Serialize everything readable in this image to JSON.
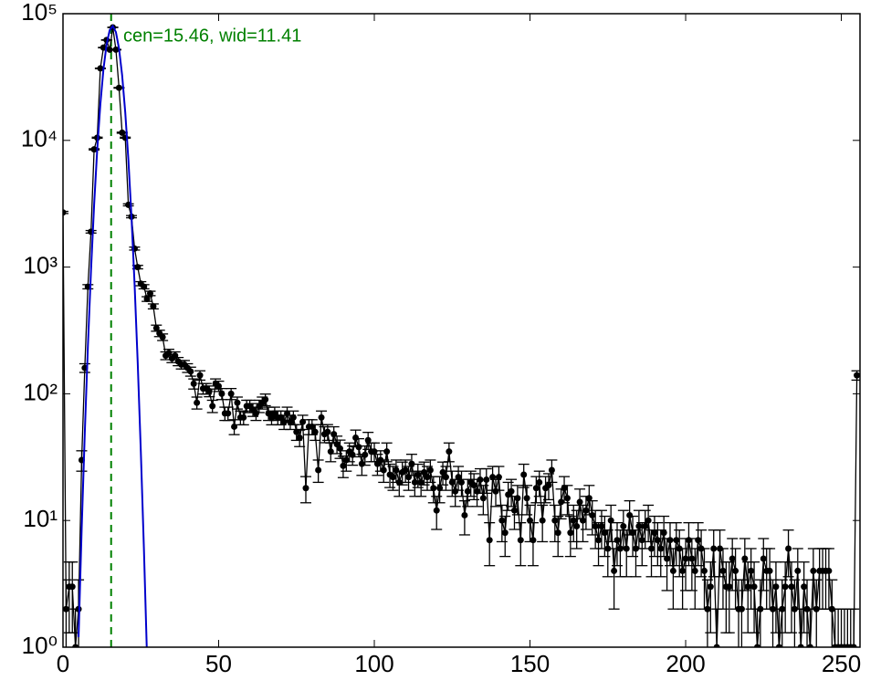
{
  "chart_data": {
    "type": "errorbar",
    "annotation": "cen=15.46, wid=11.41",
    "center_line": 15.46,
    "center_line_color": "#008000",
    "xlim": [
      0,
      256
    ],
    "xticks": [
      0,
      50,
      100,
      150,
      200,
      250
    ],
    "ylim": [
      1,
      100000
    ],
    "log_y": true,
    "yticks": [
      {
        "value": 1,
        "label": "10⁰"
      },
      {
        "value": 10,
        "label": "10¹"
      },
      {
        "value": 100,
        "label": "10²"
      },
      {
        "value": 1000,
        "label": "10³"
      },
      {
        "value": 10000,
        "label": "10⁴"
      },
      {
        "value": 100000,
        "label": "10⁵"
      }
    ],
    "series": [
      {
        "color": "#000000",
        "x": [
          0,
          1,
          2,
          3,
          4,
          5,
          6,
          7,
          8,
          9,
          10,
          11,
          12,
          13,
          14,
          15,
          16,
          17,
          18,
          19,
          20,
          21,
          22,
          23,
          24,
          25,
          26,
          27,
          28,
          29,
          30,
          31,
          32,
          33,
          34,
          35,
          36,
          37,
          38,
          39,
          40,
          41,
          42,
          43,
          44,
          45,
          46,
          47,
          48,
          49,
          50,
          51,
          52,
          53,
          54,
          55,
          56,
          57,
          58,
          59,
          60,
          61,
          62,
          63,
          64,
          65,
          66,
          67,
          68,
          69,
          70,
          71,
          72,
          73,
          74,
          75,
          76,
          77,
          78,
          79,
          80,
          81,
          82,
          83,
          84,
          85,
          86,
          87,
          88,
          89,
          90,
          91,
          92,
          93,
          94,
          95,
          96,
          97,
          98,
          99,
          100,
          101,
          102,
          103,
          104,
          105,
          106,
          107,
          108,
          109,
          110,
          111,
          112,
          113,
          114,
          115,
          116,
          117,
          118,
          119,
          120,
          121,
          122,
          123,
          124,
          125,
          126,
          127,
          128,
          129,
          130,
          131,
          132,
          133,
          134,
          135,
          136,
          137,
          138,
          139,
          140,
          141,
          142,
          143,
          144,
          145,
          146,
          147,
          148,
          149,
          150,
          151,
          152,
          153,
          154,
          155,
          156,
          157,
          158,
          159,
          160,
          161,
          162,
          163,
          164,
          165,
          166,
          167,
          168,
          169,
          170,
          171,
          172,
          173,
          174,
          175,
          176,
          177,
          178,
          179,
          180,
          181,
          182,
          183,
          184,
          185,
          186,
          187,
          188,
          189,
          190,
          191,
          192,
          193,
          194,
          195,
          196,
          197,
          198,
          199,
          200,
          201,
          202,
          203,
          204,
          205,
          206,
          207,
          208,
          209,
          210,
          211,
          212,
          213,
          214,
          215,
          216,
          217,
          218,
          219,
          220,
          221,
          222,
          223,
          224,
          225,
          226,
          227,
          228,
          229,
          230,
          231,
          232,
          233,
          234,
          235,
          236,
          237,
          238,
          239,
          240,
          241,
          242,
          243,
          244,
          245,
          246,
          247,
          248,
          249,
          250,
          251,
          252,
          253,
          254,
          255
        ],
        "values": [
          2700,
          2,
          3,
          3,
          1,
          2,
          30,
          160,
          700,
          1900,
          8500,
          10500,
          37000,
          54000,
          62000,
          52000,
          78000,
          52000,
          26000,
          11500,
          10500,
          3100,
          2500,
          1400,
          1000,
          740,
          700,
          560,
          620,
          490,
          330,
          300,
          280,
          200,
          210,
          190,
          200,
          180,
          170,
          170,
          160,
          150,
          120,
          85,
          140,
          110,
          110,
          105,
          80,
          120,
          115,
          100,
          70,
          70,
          100,
          55,
          85,
          65,
          65,
          80,
          80,
          75,
          70,
          80,
          85,
          90,
          70,
          65,
          70,
          65,
          65,
          60,
          70,
          60,
          65,
          50,
          45,
          60,
          18,
          55,
          55,
          50,
          25,
          65,
          48,
          50,
          35,
          48,
          40,
          37,
          27,
          30,
          35,
          33,
          45,
          38,
          28,
          33,
          43,
          35,
          35,
          28,
          30,
          25,
          35,
          23,
          22,
          25,
          20,
          24,
          25,
          22,
          28,
          20,
          23,
          20,
          24,
          22,
          25,
          18,
          12,
          18,
          24,
          22,
          35,
          20,
          17,
          22,
          20,
          11,
          17,
          20,
          19,
          17,
          21,
          15,
          21,
          7,
          22,
          17,
          22,
          10,
          8,
          16,
          17,
          12,
          15,
          7,
          23,
          15,
          10,
          7,
          18,
          20,
          10,
          18,
          19,
          25,
          10,
          8,
          14,
          18,
          15,
          8,
          10,
          9,
          14,
          10,
          12,
          15,
          11,
          9,
          7,
          9,
          8,
          6,
          10,
          4,
          7,
          6,
          9,
          6,
          11,
          8,
          6,
          9,
          7,
          9,
          10,
          6,
          8,
          7,
          6,
          8,
          5,
          7,
          4,
          7,
          6,
          4,
          5,
          7,
          5,
          4,
          7,
          6,
          4,
          2,
          3,
          6,
          1,
          6,
          4,
          3,
          3,
          5,
          4,
          2,
          2,
          5,
          3,
          4,
          3,
          1,
          2,
          5,
          4,
          4,
          2,
          3,
          1,
          2,
          3,
          6,
          3,
          2,
          4,
          1,
          3,
          2,
          1,
          4,
          2,
          4,
          4,
          4,
          4,
          2,
          1,
          1,
          1,
          1,
          1,
          1,
          1,
          140
        ],
        "errors": [
          52,
          1.4,
          1.7,
          1.7,
          1,
          1.4,
          5.5,
          12.6,
          26.5,
          43.6,
          92,
          102,
          192,
          232,
          249,
          228,
          279,
          228,
          161,
          107,
          102,
          55.7,
          50,
          37.4,
          31.6,
          27.2,
          26.5,
          23.7,
          24.9,
          22.1,
          18.2,
          17.3,
          16.7,
          14.1,
          14.5,
          13.8,
          14.1,
          13.4,
          13,
          13,
          12.6,
          12.2,
          11,
          9.2,
          11.8,
          10.5,
          10.5,
          10.2,
          8.9,
          11,
          10.7,
          10,
          8.4,
          8.4,
          10,
          7.4,
          9.2,
          8.1,
          8.1,
          8.9,
          8.9,
          8.7,
          8.4,
          8.9,
          9.2,
          9.5,
          8.4,
          8.1,
          8.4,
          8.1,
          8.1,
          7.7,
          8.4,
          7.7,
          8.1,
          7.1,
          6.7,
          7.7,
          4.2,
          7.4,
          7.4,
          7.1,
          5,
          8.1,
          6.9,
          7.1,
          5.9,
          6.9,
          6.3,
          6.1,
          5.2,
          5.5,
          5.9,
          5.7,
          6.7,
          6.2,
          5.3,
          5.7,
          6.6,
          5.9,
          5.9,
          5.3,
          5.5,
          5,
          5.9,
          4.8,
          4.7,
          5,
          4.5,
          4.9,
          5,
          4.7,
          5.3,
          4.5,
          4.8,
          4.5,
          4.9,
          4.7,
          5,
          4.2,
          3.5,
          4.2,
          4.9,
          4.7,
          5.9,
          4.5,
          4.1,
          4.7,
          4.5,
          3.3,
          4.1,
          4.5,
          4.4,
          4.1,
          4.6,
          3.9,
          4.6,
          2.6,
          4.7,
          4.1,
          4.7,
          3.2,
          2.8,
          4,
          4.1,
          3.5,
          3.9,
          2.6,
          4.8,
          3.9,
          3.2,
          2.6,
          4.2,
          4.5,
          3.2,
          4.2,
          4.4,
          5,
          3.2,
          2.8,
          3.7,
          4.2,
          3.9,
          2.8,
          3.2,
          3,
          3.7,
          3.2,
          3.5,
          3.9,
          3.3,
          3,
          2.6,
          3,
          2.8,
          2.4,
          3.2,
          2,
          2.6,
          2.4,
          3,
          2.4,
          3.3,
          2.8,
          2.4,
          3,
          2.6,
          3,
          3.2,
          2.4,
          2.8,
          2.6,
          2.4,
          2.8,
          2.2,
          2.6,
          2,
          2.6,
          2.4,
          2,
          2.2,
          2.6,
          2.2,
          2,
          2.6,
          2.4,
          2,
          1.4,
          1.7,
          2.4,
          1,
          2.4,
          2,
          1.7,
          1.7,
          2.2,
          2,
          1.4,
          1.4,
          2.2,
          1.7,
          2,
          1.7,
          1,
          1.4,
          2.2,
          2,
          2,
          1.4,
          1.7,
          1,
          1.4,
          1.7,
          2.4,
          1.7,
          1.4,
          2,
          1,
          1.7,
          1.4,
          1,
          2,
          1.4,
          2,
          2,
          2,
          2,
          1.4,
          1,
          1,
          1,
          1,
          1,
          1,
          1,
          11.8
        ]
      },
      {
        "color": "#0000cc",
        "x": [
          5,
          6,
          7,
          8,
          9,
          10,
          11,
          12,
          13,
          14,
          15,
          16,
          17,
          18,
          19,
          20,
          21,
          22,
          23,
          24,
          25,
          26,
          27
        ],
        "values": [
          1.2,
          8.6,
          49,
          238,
          943,
          3110,
          8500,
          19300,
          36500,
          57100,
          74200,
          80000,
          71500,
          53000,
          32600,
          16600,
          7050,
          2490,
          727,
          176,
          35,
          5.9,
          0.82
        ]
      }
    ]
  }
}
